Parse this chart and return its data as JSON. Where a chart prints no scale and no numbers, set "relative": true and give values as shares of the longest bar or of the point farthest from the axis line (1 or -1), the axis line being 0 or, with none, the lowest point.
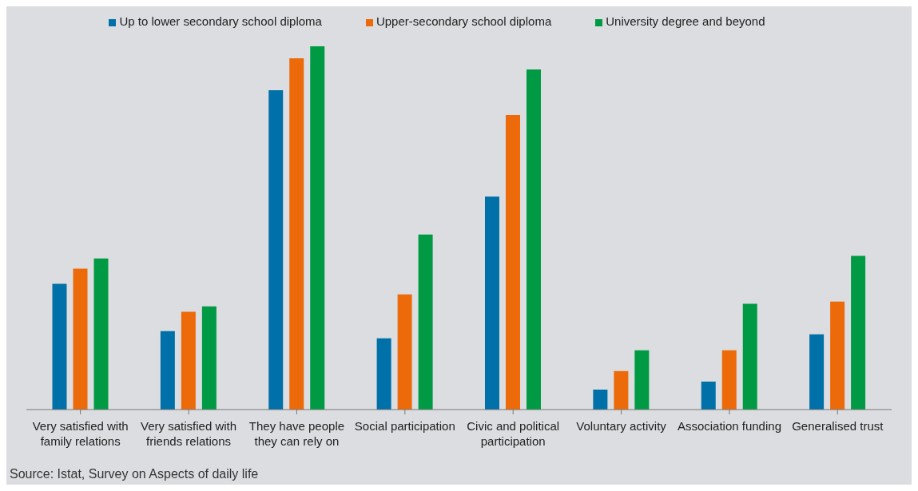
{
  "chart_data": {
    "type": "bar",
    "relative": true,
    "categories": [
      "Very satisfied with family relations",
      "Very satisfied with friends relations",
      "They have people they can rely on",
      "Social participation",
      "Civic and political participation",
      "Voluntary activity",
      "Association funding",
      "Generalised trust"
    ],
    "series": [
      {
        "name": "Up to lower secondary school diploma",
        "color": "#0070a8",
        "values": [
          0.346,
          0.216,
          0.879,
          0.196,
          0.586,
          0.055,
          0.077,
          0.207
        ]
      },
      {
        "name": "Upper-secondary school diploma",
        "color": "#ec6a0a",
        "values": [
          0.388,
          0.269,
          0.967,
          0.317,
          0.811,
          0.106,
          0.163,
          0.297
        ]
      },
      {
        "name": "University degree and beyond",
        "color": "#009a44",
        "values": [
          0.416,
          0.284,
          1,
          0.482,
          0.936,
          0.163,
          0.291,
          0.423
        ]
      }
    ],
    "legend": "top",
    "grid": false,
    "annotations": [
      "Source: Istat, Survey on Aspects of daily life"
    ]
  }
}
